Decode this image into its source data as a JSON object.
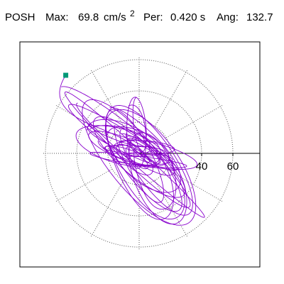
{
  "header": {
    "component": "POSH",
    "max_label": "Max:",
    "max_value": "69.8",
    "max_unit": "cm/s",
    "max_unit_sup": "2",
    "period_label": "Per:",
    "period_value": "0.420 s",
    "angle_label": "Ang:",
    "angle_value": "132.7"
  },
  "chart_data": {
    "type": "polar-orbit",
    "title": "",
    "r_ticks": [
      20,
      40,
      60
    ],
    "r_tick_labels": [
      "40",
      "60"
    ],
    "r_max": 69.8,
    "angle_deg": 132.7,
    "grid": true,
    "grid_style": "dotted",
    "spoke_angles_deg": [
      0,
      30,
      60,
      90,
      120,
      150,
      180,
      210,
      240,
      270,
      300,
      330
    ],
    "colors": {
      "trace": "#8800cc",
      "marker": "#009977",
      "grid": "#555555",
      "axis": "#000000"
    },
    "orbits": [
      {
        "cx": -5,
        "cy": 1,
        "a": 60,
        "b": 11,
        "rot": 138,
        "loops": 3
      },
      {
        "cx": 2,
        "cy": -3,
        "a": 50,
        "b": 18,
        "rot": 130,
        "loops": 3
      },
      {
        "cx": -8,
        "cy": 4,
        "a": 44,
        "b": 10,
        "rot": 150,
        "loops": 2
      },
      {
        "cx": 0,
        "cy": -8,
        "a": 40,
        "b": 14,
        "rot": 118,
        "loops": 2
      },
      {
        "cx": 6,
        "cy": -10,
        "a": 46,
        "b": 17,
        "rot": 125,
        "loops": 2
      },
      {
        "cx": -4,
        "cy": 2,
        "a": 26,
        "b": 9,
        "rot": 160,
        "loops": 3
      },
      {
        "cx": 3,
        "cy": 0,
        "a": 22,
        "b": 5,
        "rot": 178,
        "loops": 3
      },
      {
        "cx": 0,
        "cy": 0,
        "a": 14,
        "b": 6,
        "rot": 140,
        "loops": 4
      },
      {
        "cx": -12,
        "cy": 10,
        "a": 30,
        "b": 12,
        "rot": 165,
        "loops": 2
      },
      {
        "cx": 10,
        "cy": -18,
        "a": 32,
        "b": 15,
        "rot": 112,
        "loops": 2
      },
      {
        "cx": -2,
        "cy": 14,
        "a": 24,
        "b": 8,
        "rot": 95,
        "loops": 2
      },
      {
        "cx": 8,
        "cy": -2,
        "a": 36,
        "b": 7,
        "rot": 172,
        "loops": 2
      }
    ],
    "tail": {
      "start": [
        -47,
        50
      ],
      "via": [
        -54,
        44
      ]
    }
  }
}
